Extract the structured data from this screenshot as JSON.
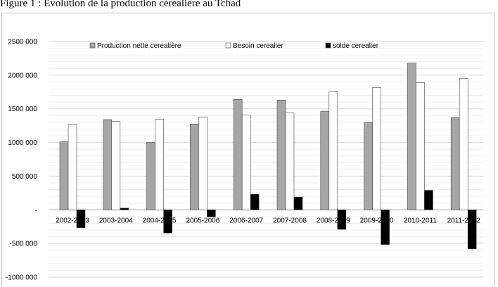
{
  "figure_title": "Figure 1 : Evolution de la production céréalière au Tchad",
  "colors": {
    "production": "#a6a6a6",
    "besoin": "#ffffff",
    "solde": "#000000",
    "grid": "#d9d9d9",
    "bar_outline": "#404040"
  },
  "chart_data": {
    "type": "bar",
    "title": "",
    "xlabel": "",
    "ylabel": "",
    "categories": [
      "2002-2003",
      "2003-2004",
      "2004-2005",
      "2005-2006",
      "2006-2007",
      "2007-2008",
      "2008-2009",
      "2009-2010",
      "2010-2011",
      "2011-2012"
    ],
    "series": [
      {
        "name": "Production nette cerealière",
        "values": [
          1010000,
          1340000,
          1000000,
          1275000,
          1640000,
          1630000,
          1465000,
          1300000,
          2180000,
          1370000
        ]
      },
      {
        "name": "Besoin cerealier",
        "values": [
          1275000,
          1315000,
          1345000,
          1380000,
          1410000,
          1440000,
          1755000,
          1815000,
          1890000,
          1950000
        ]
      },
      {
        "name": "solde cerealier",
        "values": [
          -265000,
          25000,
          -345000,
          -105000,
          230000,
          190000,
          -290000,
          -515000,
          290000,
          -580000
        ]
      }
    ],
    "ylim": [
      -1000000,
      2500000
    ],
    "yticks": [
      2500000,
      2000000,
      1500000,
      1000000,
      500000,
      0,
      -500000,
      -1000000
    ],
    "ytick_labels": [
      "2500 000",
      "2000 000",
      "1500 000",
      "1000 000",
      "500 000",
      "-",
      "-500 000",
      "-1000 000"
    ],
    "grid": true,
    "legend_position": "top-center"
  }
}
